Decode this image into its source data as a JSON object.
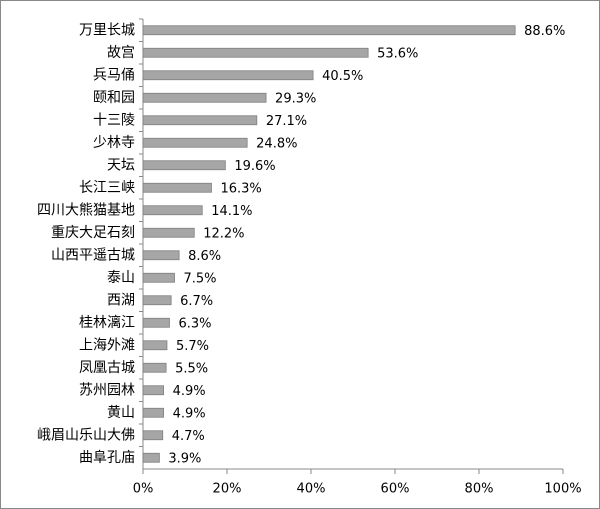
{
  "chart_data": {
    "type": "bar",
    "orientation": "horizontal",
    "categories": [
      "万里长城",
      "故宫",
      "兵马俑",
      "颐和园",
      "十三陵",
      "少林寺",
      "天坛",
      "长江三峡",
      "四川大熊猫基地",
      "重庆大足石刻",
      "山西平遥古城",
      "泰山",
      "西湖",
      "桂林漓江",
      "上海外滩",
      "凤凰古城",
      "苏州园林",
      "黄山",
      "峨眉山乐山大佛",
      "曲阜孔庙"
    ],
    "values": [
      88.6,
      53.6,
      40.5,
      29.3,
      27.1,
      24.8,
      19.6,
      16.3,
      14.1,
      12.2,
      8.6,
      7.5,
      6.7,
      6.3,
      5.7,
      5.5,
      4.9,
      4.9,
      4.7,
      3.9
    ],
    "value_labels": [
      "88.6%",
      "53.6%",
      "40.5%",
      "29.3%",
      "27.1%",
      "24.8%",
      "19.6%",
      "16.3%",
      "14.1%",
      "12.2%",
      "8.6%",
      "7.5%",
      "6.7%",
      "6.3%",
      "5.7%",
      "5.5%",
      "4.9%",
      "4.9%",
      "4.7%",
      "3.9%"
    ],
    "color": "#a6a6a6",
    "xlim": [
      0,
      100
    ],
    "xticks": [
      {
        "value": 0,
        "label": "0%"
      },
      {
        "value": 20,
        "label": "20%"
      },
      {
        "value": 40,
        "label": "40%"
      },
      {
        "value": 60,
        "label": "60%"
      },
      {
        "value": 80,
        "label": "80%"
      },
      {
        "value": 100,
        "label": "100%"
      }
    ]
  }
}
